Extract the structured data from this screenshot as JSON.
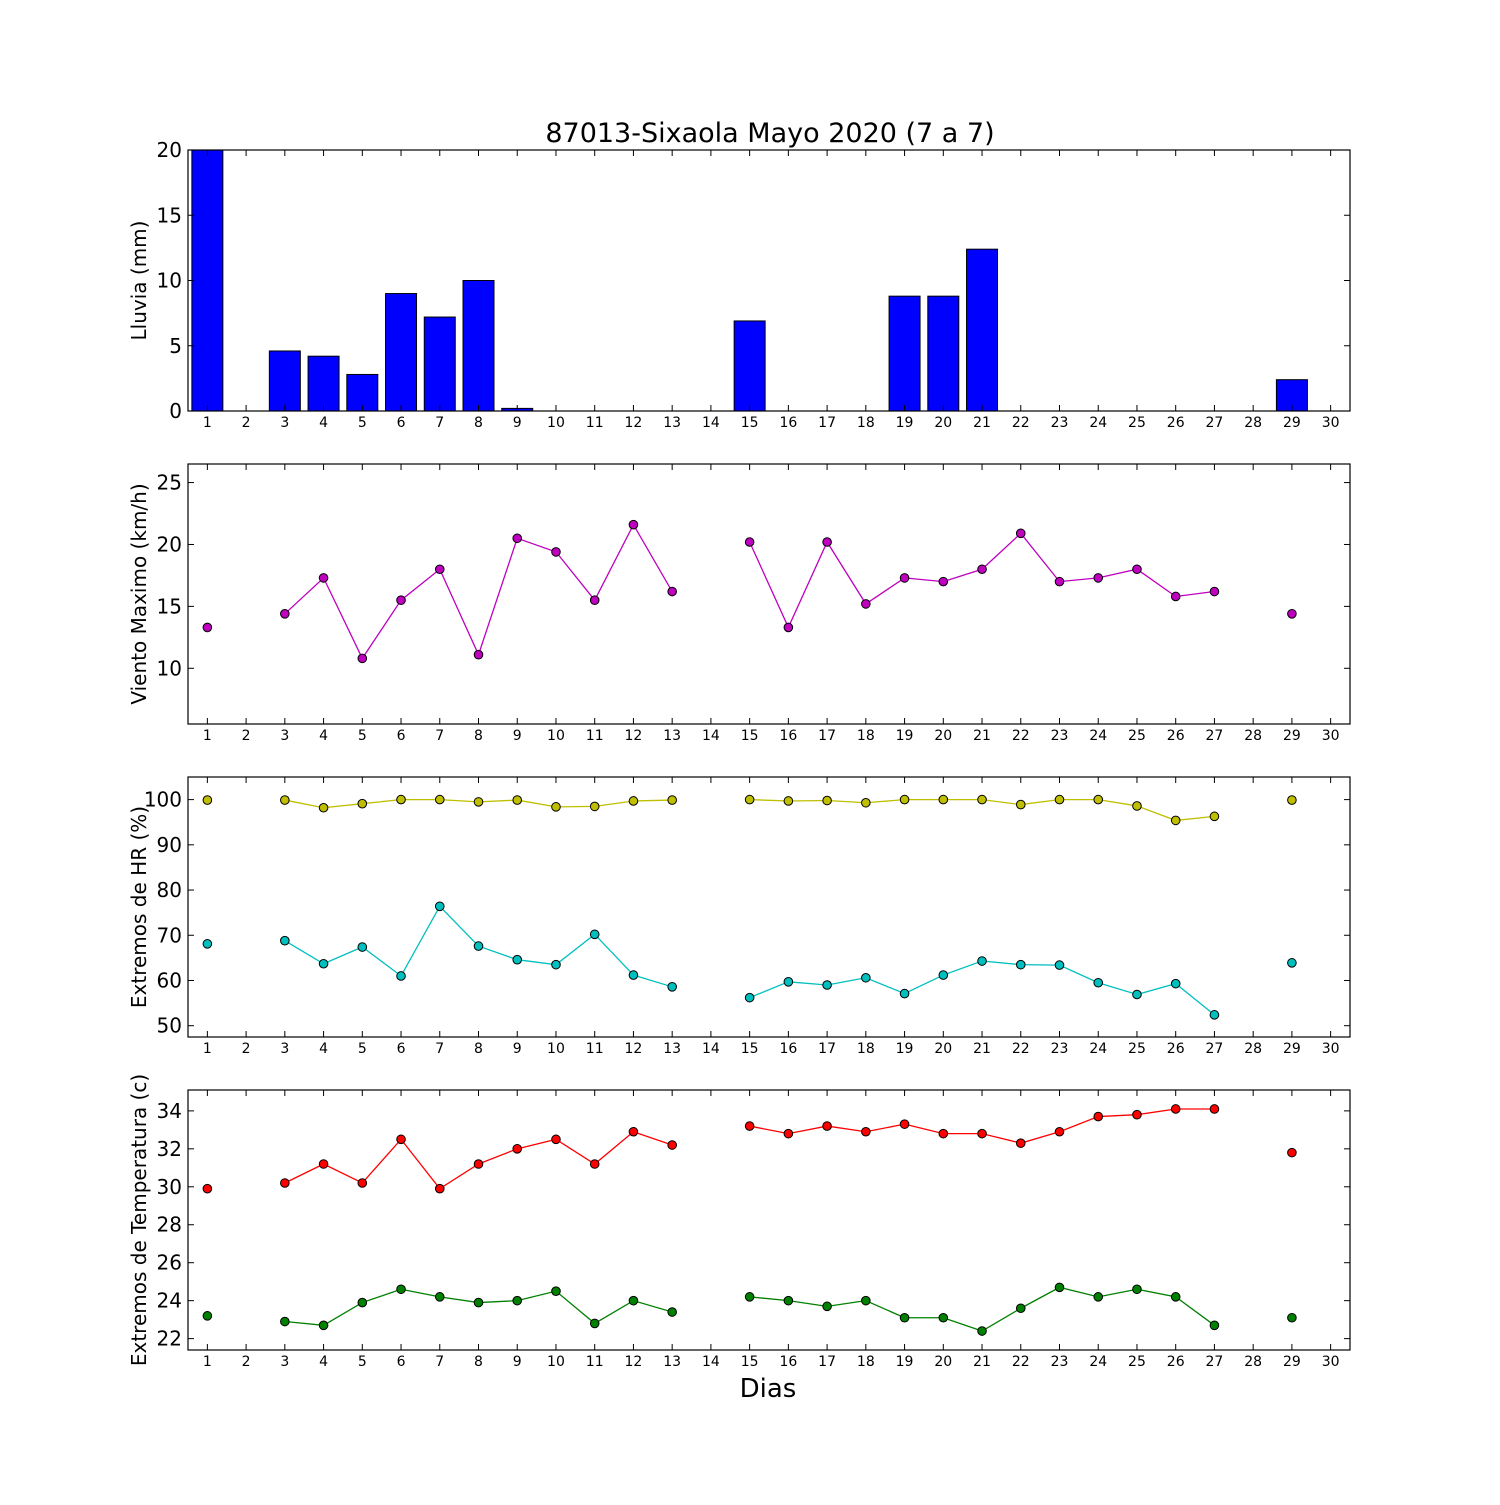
{
  "figure": {
    "title": "87013-Sixaola Mayo 2020  (7 a 7)",
    "xlabel": "Dias"
  },
  "chart_data": [
    {
      "type": "bar",
      "ylabel": "Lluvia (mm)",
      "xlim": [
        0.5,
        30.5
      ],
      "ylim": [
        0,
        20
      ],
      "yticks": [
        0,
        5,
        10,
        15,
        20
      ],
      "xticks": [
        1,
        2,
        3,
        4,
        5,
        6,
        7,
        8,
        9,
        10,
        11,
        12,
        13,
        14,
        15,
        16,
        17,
        18,
        19,
        20,
        21,
        22,
        23,
        24,
        25,
        26,
        27,
        28,
        29,
        30
      ],
      "categories": [
        1,
        2,
        3,
        4,
        5,
        6,
        7,
        8,
        9,
        10,
        11,
        12,
        13,
        14,
        15,
        16,
        17,
        18,
        19,
        20,
        21,
        22,
        23,
        24,
        25,
        26,
        27,
        28,
        29,
        30
      ],
      "values": [
        20,
        0,
        4.6,
        4.2,
        2.8,
        9.0,
        7.2,
        10.0,
        0.2,
        0,
        0,
        0,
        0,
        0,
        6.9,
        0,
        0,
        0,
        8.8,
        8.8,
        12.4,
        0,
        0,
        0,
        0,
        0,
        0,
        0,
        2.4,
        0
      ],
      "color": "#0000ff"
    },
    {
      "type": "line",
      "ylabel": "Viento Maximo (km/h)",
      "xlim": [
        0.5,
        30.5
      ],
      "ylim": [
        5.5,
        26.5
      ],
      "yticks": [
        10,
        15,
        20,
        25
      ],
      "xticks": [
        1,
        2,
        3,
        4,
        5,
        6,
        7,
        8,
        9,
        10,
        11,
        12,
        13,
        14,
        15,
        16,
        17,
        18,
        19,
        20,
        21,
        22,
        23,
        24,
        25,
        26,
        27,
        28,
        29,
        30
      ],
      "x": [
        1,
        2,
        3,
        4,
        5,
        6,
        7,
        8,
        9,
        10,
        11,
        12,
        13,
        14,
        15,
        16,
        17,
        18,
        19,
        20,
        21,
        22,
        23,
        24,
        25,
        26,
        27,
        28,
        29,
        30
      ],
      "series": [
        {
          "color": "#bf00bf",
          "values": [
            13.3,
            null,
            14.4,
            17.3,
            10.8,
            15.5,
            18.0,
            11.1,
            20.5,
            19.4,
            15.5,
            21.6,
            16.2,
            null,
            20.2,
            13.3,
            20.2,
            15.2,
            17.3,
            17.0,
            18.0,
            20.9,
            17.0,
            17.3,
            18.0,
            15.8,
            16.2,
            null,
            14.4,
            null
          ]
        }
      ]
    },
    {
      "type": "line",
      "ylabel": "Extremos de HR (%)",
      "xlim": [
        0.5,
        30.5
      ],
      "ylim": [
        47.5,
        105
      ],
      "yticks": [
        50,
        60,
        70,
        80,
        90,
        100
      ],
      "xticks": [
        1,
        2,
        3,
        4,
        5,
        6,
        7,
        8,
        9,
        10,
        11,
        12,
        13,
        14,
        15,
        16,
        17,
        18,
        19,
        20,
        21,
        22,
        23,
        24,
        25,
        26,
        27,
        28,
        29,
        30
      ],
      "x": [
        1,
        2,
        3,
        4,
        5,
        6,
        7,
        8,
        9,
        10,
        11,
        12,
        13,
        14,
        15,
        16,
        17,
        18,
        19,
        20,
        21,
        22,
        23,
        24,
        25,
        26,
        27,
        28,
        29,
        30
      ],
      "series": [
        {
          "color": "#bfbf00",
          "values": [
            99.9,
            null,
            99.9,
            98.2,
            99.1,
            100.0,
            100.0,
            99.5,
            99.9,
            98.4,
            98.5,
            99.7,
            99.9,
            null,
            100.0,
            99.7,
            99.8,
            99.3,
            100.0,
            100.0,
            100.0,
            98.9,
            100.0,
            100.0,
            98.6,
            95.4,
            96.3,
            null,
            99.9,
            null
          ]
        },
        {
          "color": "#00bfbf",
          "values": [
            68.1,
            null,
            68.8,
            63.7,
            67.4,
            61.0,
            76.4,
            67.6,
            64.6,
            63.5,
            70.2,
            61.2,
            58.6,
            null,
            56.2,
            59.7,
            59.0,
            60.6,
            57.1,
            61.2,
            64.3,
            63.5,
            63.4,
            59.5,
            56.9,
            59.3,
            52.4,
            null,
            63.9,
            null
          ]
        }
      ]
    },
    {
      "type": "line",
      "ylabel": "Extremos de Temperatura (c)",
      "xlim": [
        0.5,
        30.5
      ],
      "ylim": [
        21.4,
        35.1
      ],
      "yticks": [
        22,
        24,
        26,
        28,
        30,
        32,
        34
      ],
      "xticks": [
        1,
        2,
        3,
        4,
        5,
        6,
        7,
        8,
        9,
        10,
        11,
        12,
        13,
        14,
        15,
        16,
        17,
        18,
        19,
        20,
        21,
        22,
        23,
        24,
        25,
        26,
        27,
        28,
        29,
        30
      ],
      "x": [
        1,
        2,
        3,
        4,
        5,
        6,
        7,
        8,
        9,
        10,
        11,
        12,
        13,
        14,
        15,
        16,
        17,
        18,
        19,
        20,
        21,
        22,
        23,
        24,
        25,
        26,
        27,
        28,
        29,
        30
      ],
      "series": [
        {
          "color": "#ff0000",
          "values": [
            29.9,
            null,
            30.2,
            31.2,
            30.2,
            32.5,
            29.9,
            31.2,
            32.0,
            32.5,
            31.2,
            32.9,
            32.2,
            null,
            33.2,
            32.8,
            33.2,
            32.9,
            33.3,
            32.8,
            32.8,
            32.3,
            32.9,
            33.7,
            33.8,
            34.1,
            34.1,
            null,
            31.8,
            null
          ]
        },
        {
          "color": "#008000",
          "values": [
            23.2,
            null,
            22.9,
            22.7,
            23.9,
            24.6,
            24.2,
            23.9,
            24.0,
            24.5,
            22.8,
            24.0,
            23.4,
            null,
            24.2,
            24.0,
            23.7,
            24.0,
            23.1,
            23.1,
            22.4,
            23.6,
            24.7,
            24.2,
            24.6,
            24.2,
            22.7,
            null,
            23.1,
            null
          ]
        }
      ]
    }
  ]
}
